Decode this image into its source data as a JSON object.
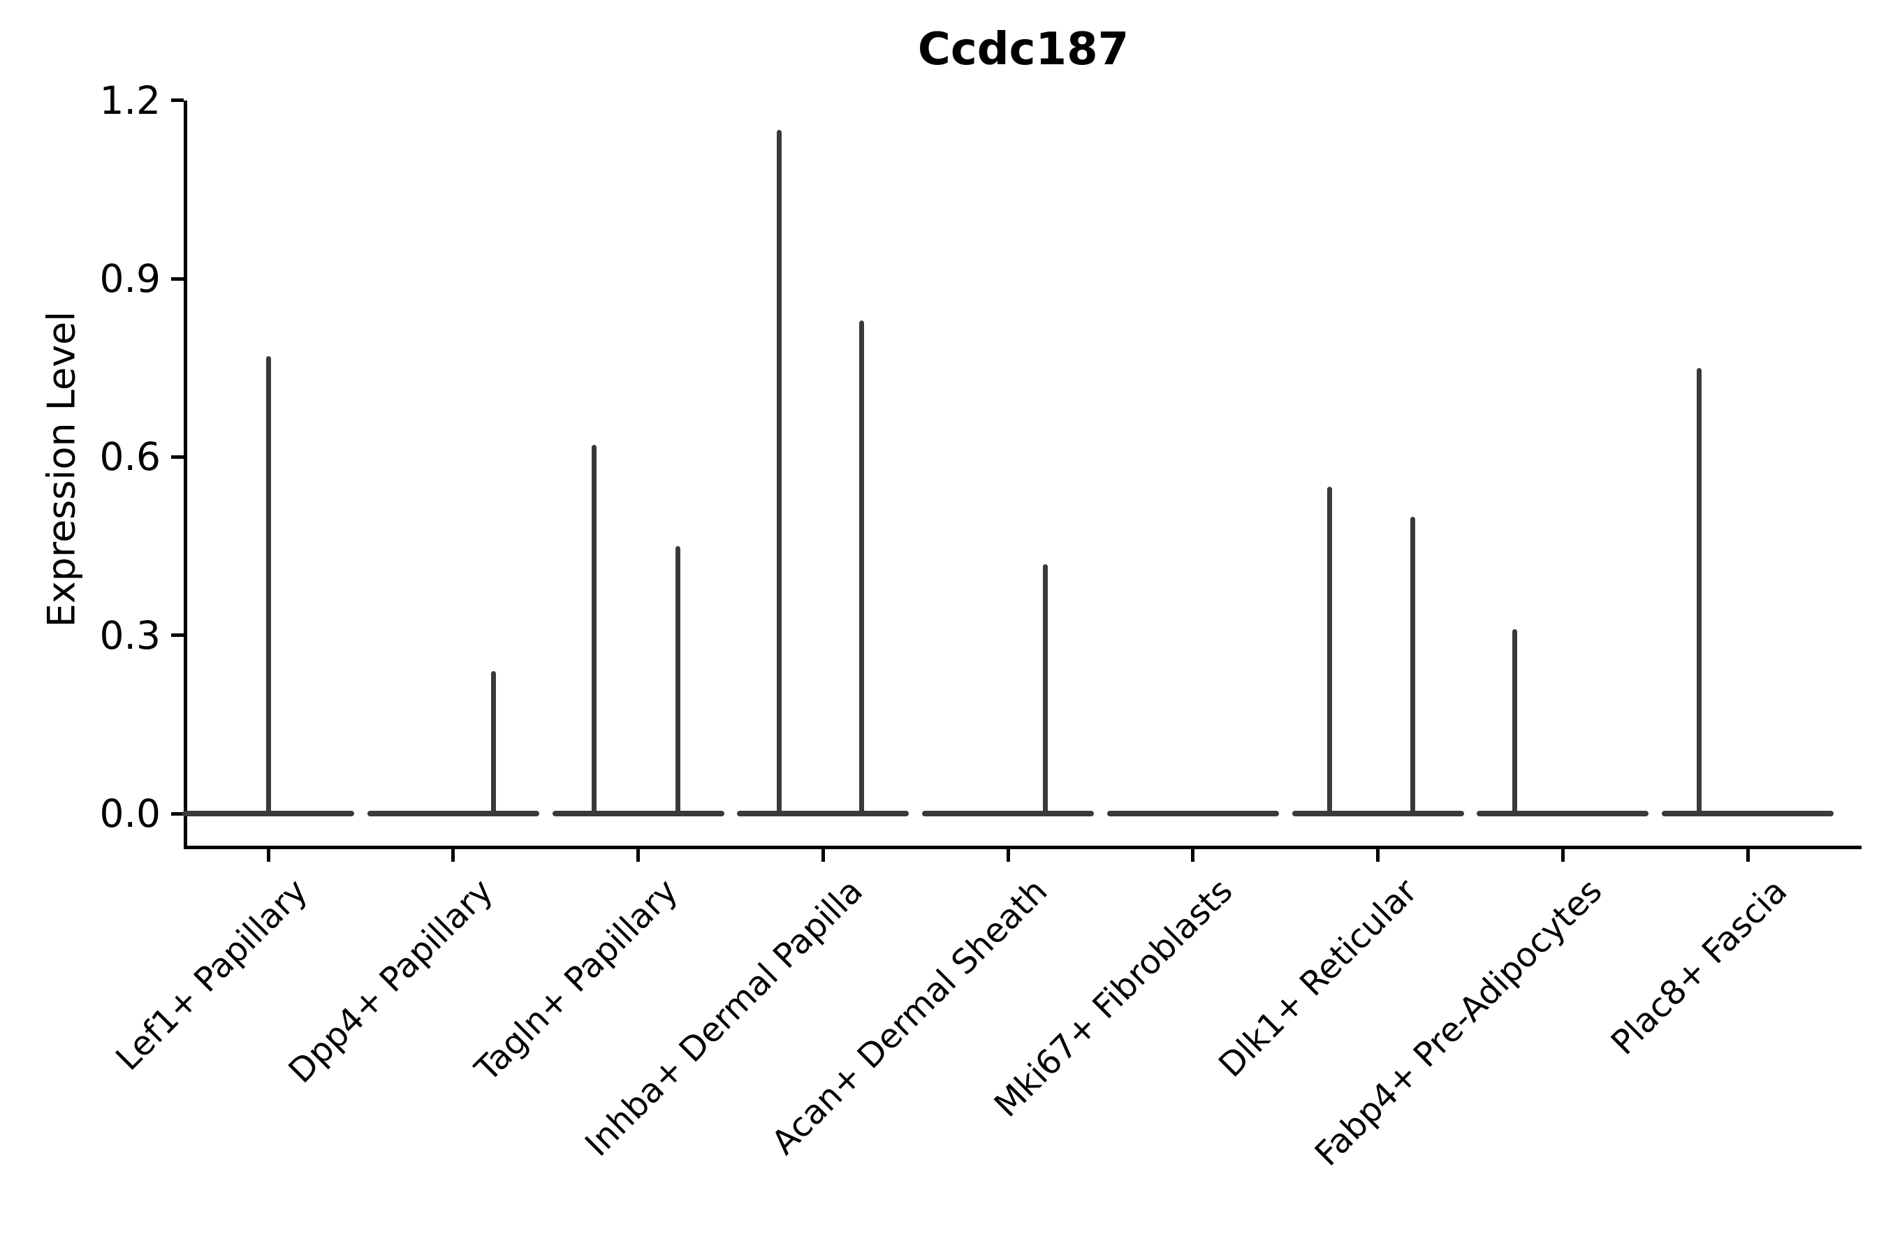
{
  "chart_data": {
    "type": "violin",
    "title": "Ccdc187",
    "ylabel": "Expression Level",
    "xlabel": "",
    "ylim": [
      0.0,
      1.2
    ],
    "grid": false,
    "legend_position": "none",
    "yticks": [
      {
        "value": 0.0,
        "label": "0.0"
      },
      {
        "value": 0.3,
        "label": "0.3"
      },
      {
        "value": 0.6,
        "label": "0.6"
      },
      {
        "value": 0.9,
        "label": "0.9"
      },
      {
        "value": 1.2,
        "label": "1.2"
      }
    ],
    "categories": [
      "Lef1+ Papillary",
      "Dpp4+ Papillary",
      "Tagln+ Papillary",
      "Inhba+ Dermal Papilla",
      "Acan+ Dermal Sheath",
      "Mki67+ Fibroblasts",
      "Dlk1+ Reticular",
      "Fabp4+ Pre-Adipocytes",
      "Plac8+ Fascia"
    ],
    "violins": [
      {
        "category": "Lef1+ Papillary",
        "baseline_value": 0.0,
        "spikes": [
          {
            "dx": 0,
            "max_value": 0.77
          }
        ]
      },
      {
        "category": "Dpp4+ Papillary",
        "baseline_value": 0.0,
        "spikes": [
          {
            "dx": 58,
            "max_value": 0.24
          }
        ]
      },
      {
        "category": "Tagln+ Papillary",
        "baseline_value": 0.0,
        "spikes": [
          {
            "dx": -63,
            "max_value": 0.62
          },
          {
            "dx": 57,
            "max_value": 0.45
          }
        ]
      },
      {
        "category": "Inhba+ Dermal Papilla",
        "baseline_value": 0.0,
        "spikes": [
          {
            "dx": -63,
            "max_value": 1.15
          },
          {
            "dx": 55,
            "max_value": 0.83
          }
        ]
      },
      {
        "category": "Acan+ Dermal Sheath",
        "baseline_value": 0.0,
        "spikes": [
          {
            "dx": 53,
            "max_value": 0.42
          }
        ]
      },
      {
        "category": "Mki67+ Fibroblasts",
        "baseline_value": 0.0,
        "spikes": []
      },
      {
        "category": "Dlk1+ Reticular",
        "baseline_value": 0.0,
        "spikes": [
          {
            "dx": -69,
            "max_value": 0.55
          },
          {
            "dx": 50,
            "max_value": 0.5
          }
        ]
      },
      {
        "category": "Fabp4+ Pre-Adipocytes",
        "baseline_value": 0.0,
        "spikes": [
          {
            "dx": -69,
            "max_value": 0.31
          }
        ]
      },
      {
        "category": "Plac8+ Fascia",
        "baseline_value": 0.0,
        "spikes": [
          {
            "dx": -70,
            "max_value": 0.75
          }
        ]
      }
    ],
    "colors": {
      "violin_stroke": "#3a3a3a",
      "axis": "#000000",
      "text": "#000000",
      "background": "#ffffff"
    }
  }
}
